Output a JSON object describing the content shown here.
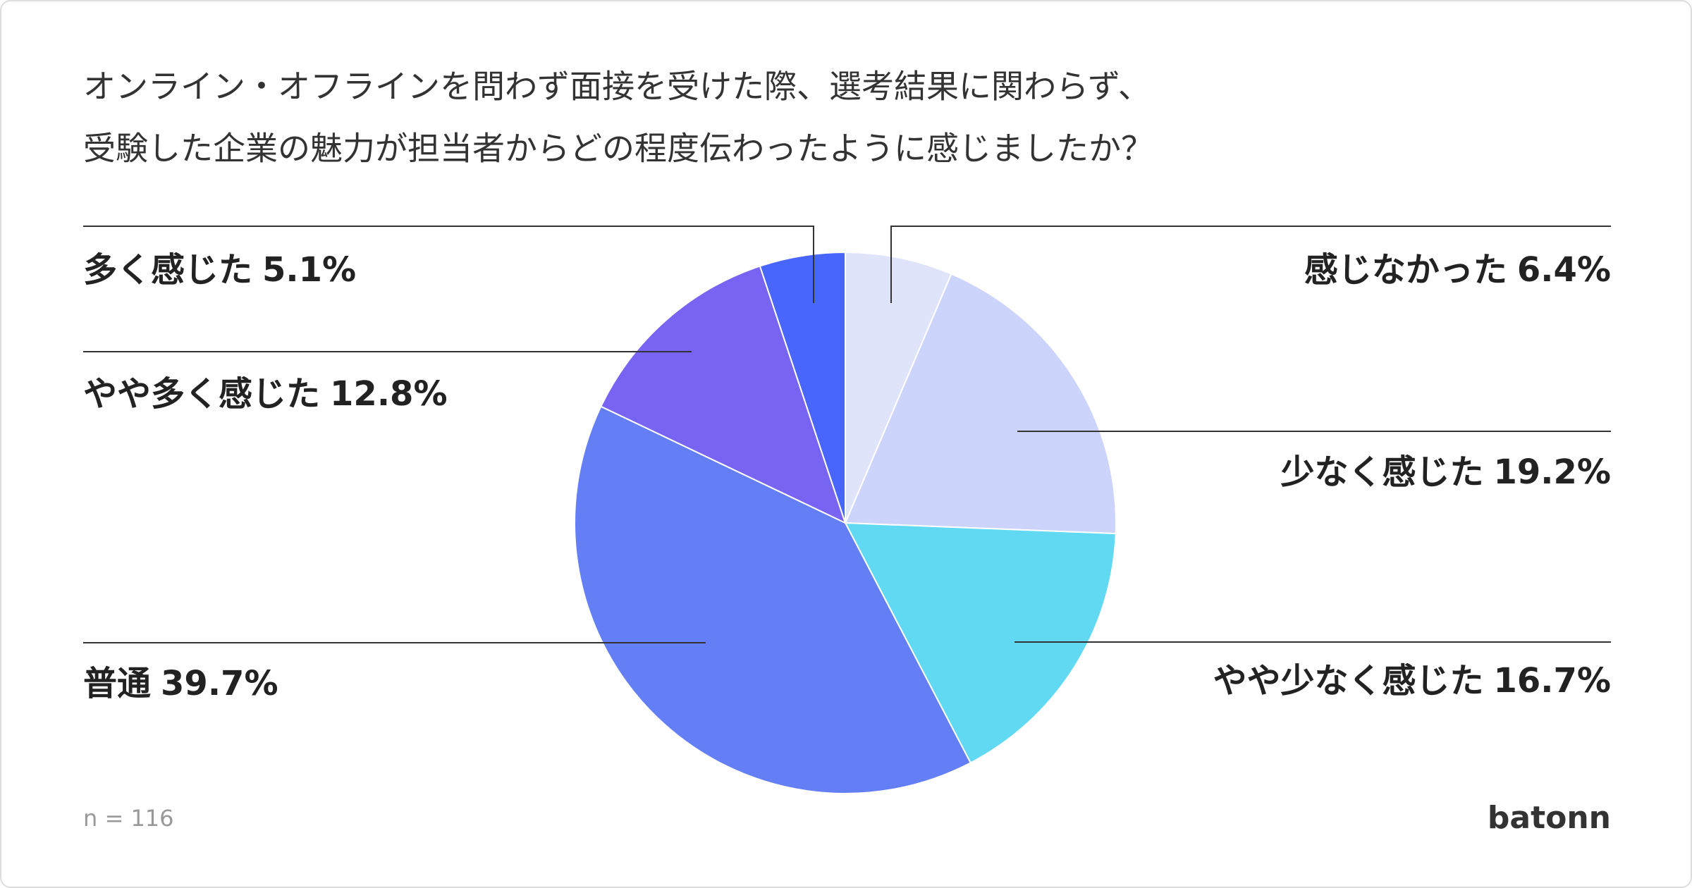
{
  "chart_data": {
    "type": "pie",
    "title": [
      "オンライン・オフラインを問わず面接を受けた際、選考結果に関わらず、",
      "受験した企業の魅力が担当者からどの程度伝わったように感じましたか？"
    ],
    "categories": [
      "感じなかった",
      "少なく感じた",
      "やや少なく感じた",
      "普通",
      "やや多く感じた",
      "多く感じた"
    ],
    "values": [
      6.4,
      19.2,
      16.7,
      39.7,
      12.8,
      5.1
    ],
    "value_labels": [
      "6.4%",
      "19.2%",
      "16.7%",
      "39.7%",
      "12.8%",
      "5.1%"
    ],
    "colors": [
      "#e0e4fb",
      "#cdd4fb",
      "#62d9f3",
      "#647ff5",
      "#7764f3",
      "#4866fb"
    ],
    "note": "n = 116",
    "brand": "batonn"
  }
}
